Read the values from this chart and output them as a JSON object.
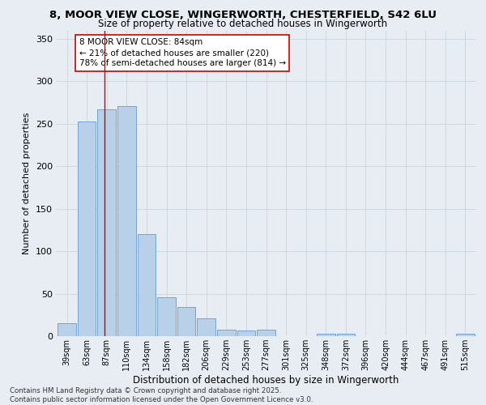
{
  "title_line1": "8, MOOR VIEW CLOSE, WINGERWORTH, CHESTERFIELD, S42 6LU",
  "title_line2": "Size of property relative to detached houses in Wingerworth",
  "xlabel": "Distribution of detached houses by size in Wingerworth",
  "ylabel": "Number of detached properties",
  "categories": [
    "39sqm",
    "63sqm",
    "87sqm",
    "110sqm",
    "134sqm",
    "158sqm",
    "182sqm",
    "206sqm",
    "229sqm",
    "253sqm",
    "277sqm",
    "301sqm",
    "325sqm",
    "348sqm",
    "372sqm",
    "396sqm",
    "420sqm",
    "444sqm",
    "467sqm",
    "491sqm",
    "515sqm"
  ],
  "values": [
    15,
    253,
    267,
    271,
    120,
    46,
    34,
    21,
    8,
    7,
    8,
    0,
    0,
    3,
    3,
    0,
    0,
    0,
    0,
    0,
    3
  ],
  "bar_color": "#b8d0e8",
  "bar_edge_color": "#6699cc",
  "background_color": "#e8edf4",
  "ylim": [
    0,
    360
  ],
  "yticks": [
    0,
    50,
    100,
    150,
    200,
    250,
    300,
    350
  ],
  "annotation_text": "8 MOOR VIEW CLOSE: 84sqm\n← 21% of detached houses are smaller (220)\n78% of semi-detached houses are larger (814) →",
  "vline_position": 1.87,
  "footer_text": "Contains HM Land Registry data © Crown copyright and database right 2025.\nContains public sector information licensed under the Open Government Licence v3.0.",
  "grid_color": "#c8d4e0"
}
